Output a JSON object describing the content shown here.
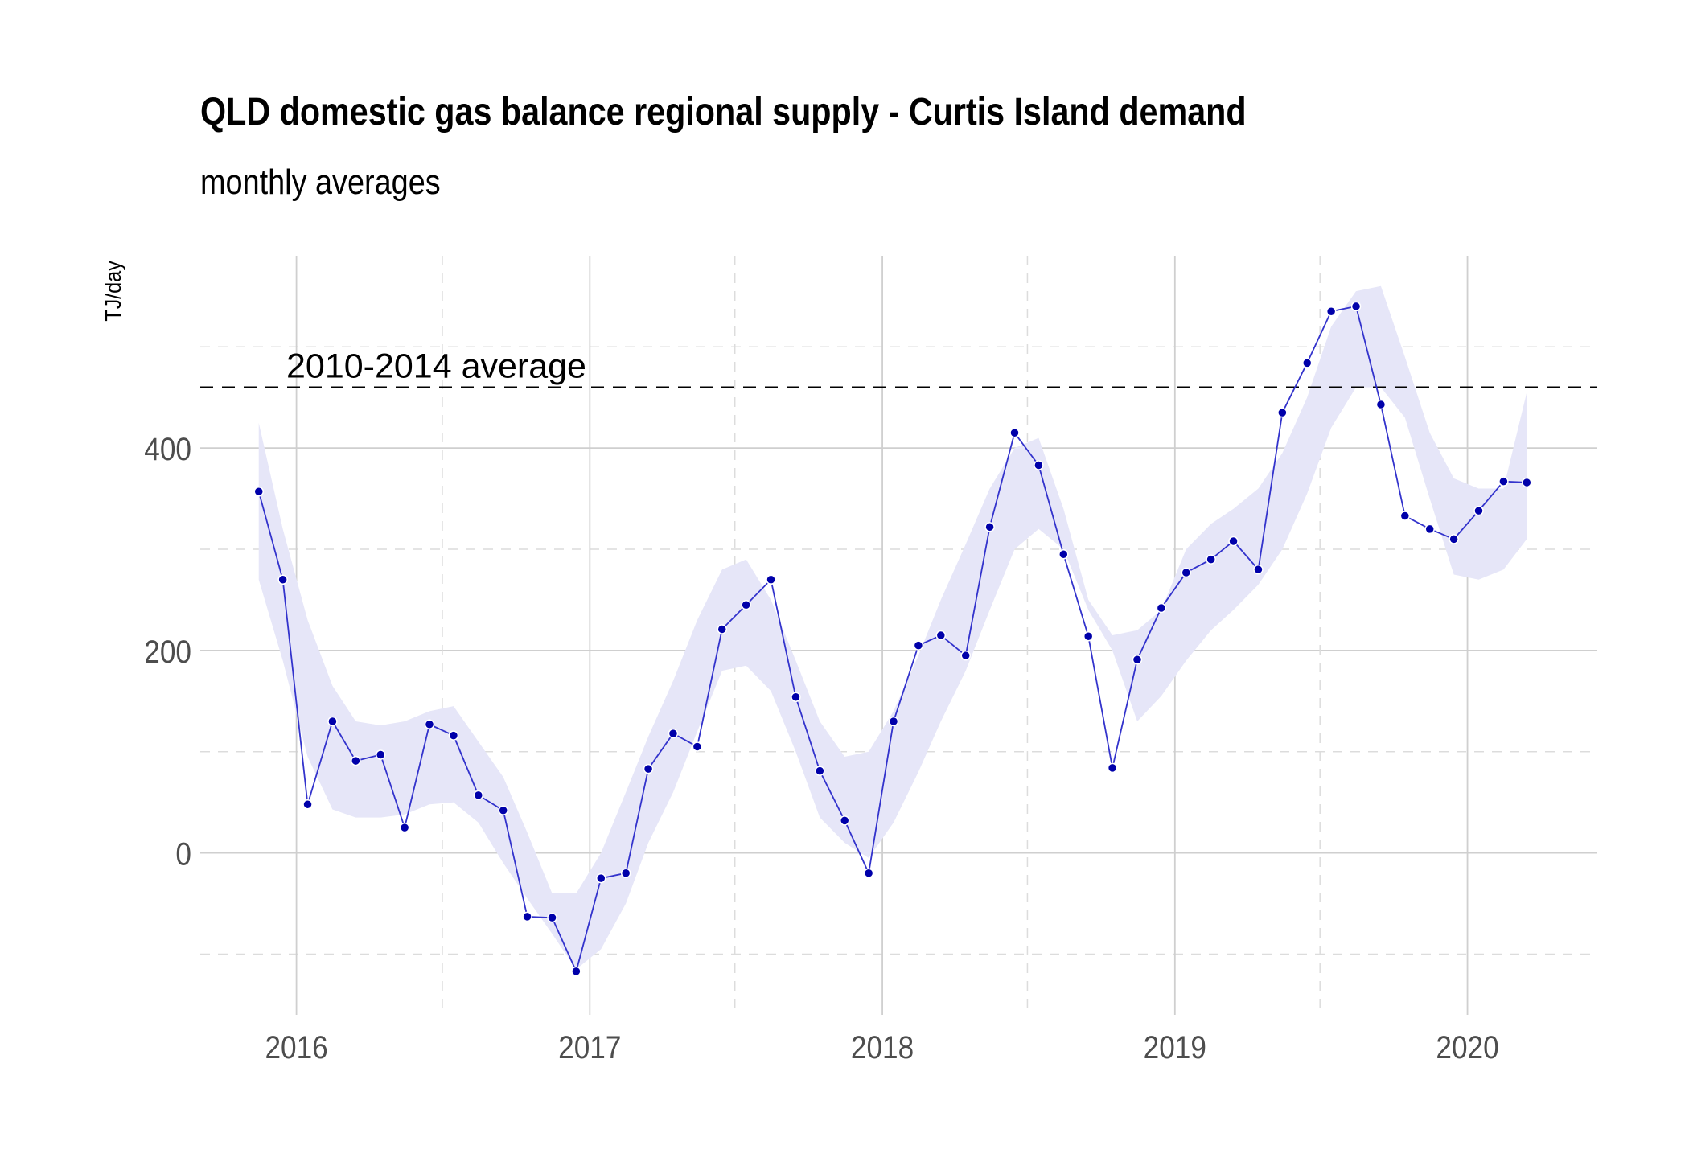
{
  "chart_data": {
    "type": "line",
    "title": "QLD domestic gas balance regional supply - Curtis Island demand",
    "subtitle": "monthly averages",
    "xlabel": "",
    "ylabel": "TJ/day",
    "x_ticks": [
      "2016",
      "2017",
      "2018",
      "2019",
      "2020"
    ],
    "y_ticks": [
      0,
      200,
      400
    ],
    "xlim": [
      "2015-09-03",
      "2020-06-10"
    ],
    "ylim": [
      -160,
      590
    ],
    "grid": true,
    "reference_line": {
      "value": 460,
      "label": "2010-2014 average",
      "style": "dashed",
      "color": "#000000"
    },
    "colors": {
      "line": "#3333cc",
      "points": "#0000aa",
      "band": "#e6e6f8",
      "grid_major": "#cfcfcf",
      "grid_minor": "#dcdcdc"
    },
    "series": [
      {
        "dates": [
          "2015-11",
          "2015-12",
          "2016-01",
          "2016-02",
          "2016-03",
          "2016-04",
          "2016-05",
          "2016-06",
          "2016-07",
          "2016-08",
          "2016-09",
          "2016-10",
          "2016-11",
          "2016-12",
          "2017-01",
          "2017-02",
          "2017-03",
          "2017-04",
          "2017-05",
          "2017-06",
          "2017-07",
          "2017-08",
          "2017-09",
          "2017-10",
          "2017-11",
          "2017-12",
          "2018-01",
          "2018-02",
          "2018-03",
          "2018-04",
          "2018-05",
          "2018-06",
          "2018-07",
          "2018-08",
          "2018-09",
          "2018-10",
          "2018-11",
          "2018-12",
          "2019-01",
          "2019-02",
          "2019-03",
          "2019-04",
          "2019-05",
          "2019-06",
          "2019-07",
          "2019-08",
          "2019-09",
          "2019-10",
          "2019-11",
          "2019-12",
          "2020-01",
          "2020-02",
          "2020-03"
        ],
        "values": [
          357,
          270,
          48,
          130,
          91,
          97,
          25,
          127,
          116,
          57,
          42,
          -63,
          -64,
          -117,
          -25,
          -20,
          83,
          118,
          105,
          221,
          245,
          270,
          154,
          81,
          32,
          -20,
          130,
          205,
          215,
          195,
          322,
          415,
          383,
          295,
          214,
          84,
          191,
          242,
          277,
          290,
          308,
          280,
          435,
          484,
          535,
          540,
          443,
          333,
          320,
          310,
          338,
          367,
          366
        ]
      }
    ],
    "band": {
      "lower": [
        270,
        190,
        95,
        43,
        35,
        35,
        38,
        48,
        50,
        30,
        -10,
        -45,
        -80,
        -115,
        -95,
        -50,
        10,
        60,
        120,
        180,
        185,
        160,
        100,
        35,
        10,
        -5,
        30,
        80,
        130,
        180,
        240,
        300,
        320,
        300,
        240,
        200,
        130,
        155,
        190,
        220,
        240,
        265,
        300,
        355,
        420,
        460,
        460,
        430,
        350,
        275,
        270,
        280,
        310
      ],
      "upper": [
        425,
        320,
        230,
        165,
        130,
        126,
        130,
        140,
        145,
        110,
        75,
        20,
        -40,
        -40,
        0,
        60,
        115,
        170,
        230,
        280,
        290,
        250,
        190,
        130,
        95,
        100,
        140,
        195,
        250,
        305,
        360,
        400,
        410,
        340,
        250,
        215,
        220,
        240,
        300,
        325,
        340,
        360,
        395,
        450,
        520,
        555,
        560,
        490,
        415,
        370,
        360,
        360,
        455
      ]
    }
  }
}
